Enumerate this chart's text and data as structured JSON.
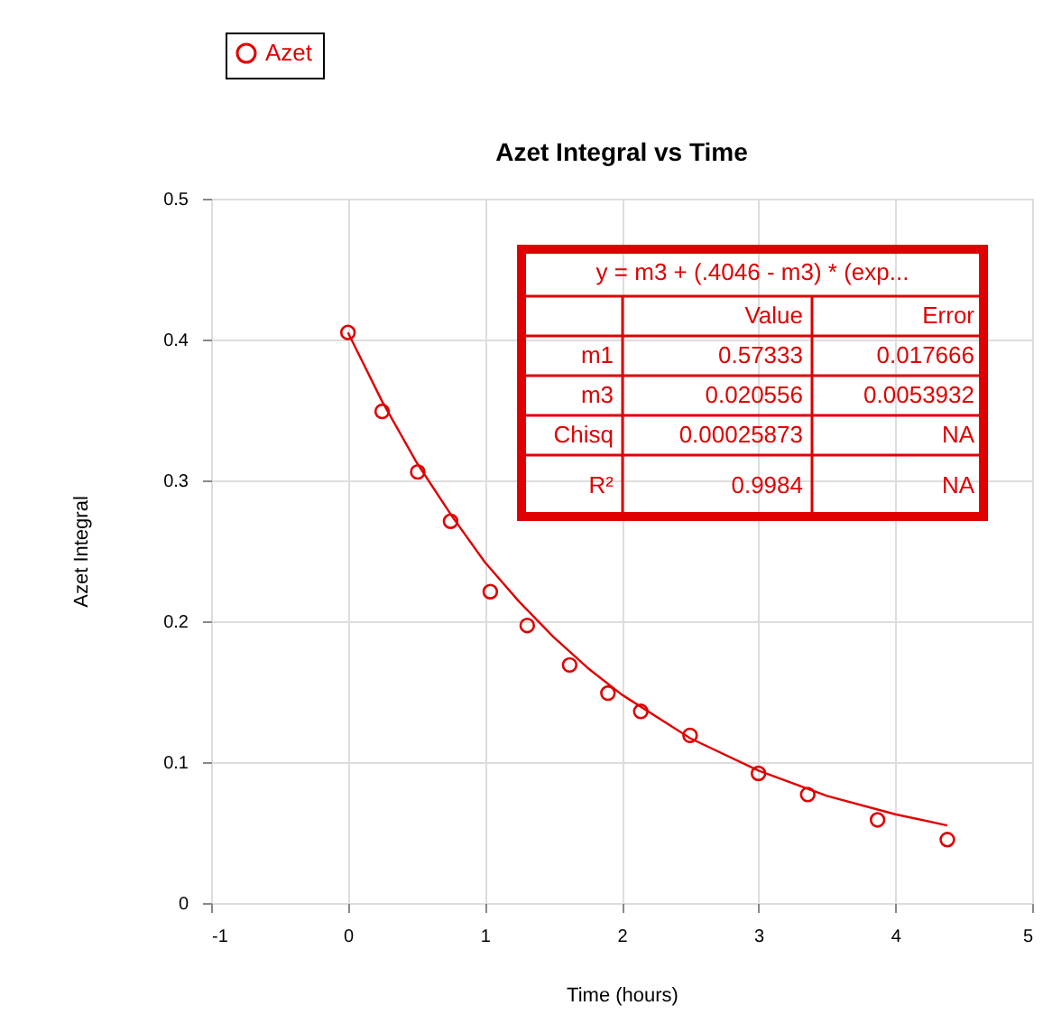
{
  "chart_data": {
    "type": "scatter",
    "title": "Azet Integral vs Time",
    "xlabel": "Time (hours)",
    "ylabel": "Azet Integral",
    "xlim": [
      -1,
      5
    ],
    "xticks": [
      -1,
      0,
      1,
      2,
      3,
      4,
      5
    ],
    "ylim": [
      0,
      0.5
    ],
    "yticks": [
      0,
      0.1,
      0.2,
      0.3,
      0.4,
      0.5
    ],
    "grid": true,
    "legend": "top left",
    "series": [
      {
        "name": "Azet",
        "marker": "circle",
        "color": "#e00000",
        "x": [
          0,
          0.25,
          0.51,
          0.75,
          1.04,
          1.31,
          1.62,
          1.9,
          2.14,
          2.5,
          3.0,
          3.36,
          3.87,
          4.38
        ],
        "values": [
          0.405,
          0.349,
          0.306,
          0.271,
          0.221,
          0.197,
          0.169,
          0.149,
          0.136,
          0.119,
          0.092,
          0.077,
          0.059,
          0.045
        ]
      },
      {
        "type": "line",
        "color": "#e00000",
        "x": [
          0,
          0.25,
          0.5,
          0.75,
          1,
          1.25,
          1.5,
          1.75,
          2,
          2.5,
          3,
          3.5,
          4,
          4.38
        ],
        "values": [
          0.405,
          0.356,
          0.313,
          0.276,
          0.242,
          0.214,
          0.189,
          0.167,
          0.148,
          0.117,
          0.094,
          0.076,
          0.063,
          0.055
        ]
      }
    ],
    "annotations": [
      "y = m3 + (.4046 - m3) * (exp...",
      "Value",
      "Error",
      "m1",
      "0.57333",
      "0.017666",
      "m3",
      "0.020556",
      "0.0053932",
      "Chisq",
      "0.00025873",
      "NA",
      "R²",
      "0.9984",
      "NA"
    ]
  }
}
